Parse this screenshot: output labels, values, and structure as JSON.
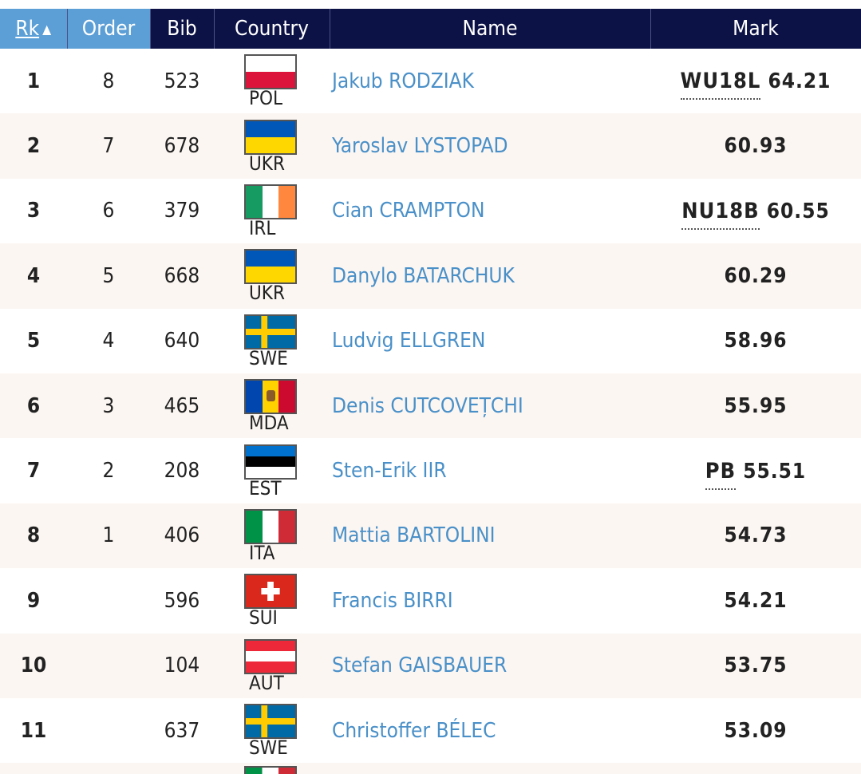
{
  "header": {
    "rk": "Rk",
    "order": "Order",
    "bib": "Bib",
    "country": "Country",
    "name": "Name",
    "mark": "Mark"
  },
  "rows": [
    {
      "rk": "1",
      "order": "8",
      "bib": "523",
      "country": "POL",
      "name": "Jakub RODZIAK",
      "qual": "WU18L",
      "mark": "64.21"
    },
    {
      "rk": "2",
      "order": "7",
      "bib": "678",
      "country": "UKR",
      "name": "Yaroslav LYSTOPAD",
      "qual": "",
      "mark": "60.93"
    },
    {
      "rk": "3",
      "order": "6",
      "bib": "379",
      "country": "IRL",
      "name": "Cian CRAMPTON",
      "qual": "NU18B",
      "mark": "60.55"
    },
    {
      "rk": "4",
      "order": "5",
      "bib": "668",
      "country": "UKR",
      "name": "Danylo BATARCHUK",
      "qual": "",
      "mark": "60.29"
    },
    {
      "rk": "5",
      "order": "4",
      "bib": "640",
      "country": "SWE",
      "name": "Ludvig ELLGREN",
      "qual": "",
      "mark": "58.96"
    },
    {
      "rk": "6",
      "order": "3",
      "bib": "465",
      "country": "MDA",
      "name": "Denis CUTCOVEȚCHI",
      "qual": "",
      "mark": "55.95"
    },
    {
      "rk": "7",
      "order": "2",
      "bib": "208",
      "country": "EST",
      "name": "Sten-Erik IIR",
      "qual": "PB",
      "mark": "55.51"
    },
    {
      "rk": "8",
      "order": "1",
      "bib": "406",
      "country": "ITA",
      "name": "Mattia BARTOLINI",
      "qual": "",
      "mark": "54.73"
    },
    {
      "rk": "9",
      "order": "",
      "bib": "596",
      "country": "SUI",
      "name": "Francis BIRRI",
      "qual": "",
      "mark": "54.21"
    },
    {
      "rk": "10",
      "order": "",
      "bib": "104",
      "country": "AUT",
      "name": "Stefan GAISBAUER",
      "qual": "",
      "mark": "53.75"
    },
    {
      "rk": "11",
      "order": "",
      "bib": "637",
      "country": "SWE",
      "name": "Christoffer BÉLEC",
      "qual": "",
      "mark": "53.09"
    }
  ],
  "icons": {
    "sort": "sort-ascending-icon"
  },
  "colors": {
    "header_bg": "#0c1245",
    "sorted_header_bg": "#5b9fd6",
    "link": "#4a90c8",
    "alt_row": "#fbf6f2"
  }
}
